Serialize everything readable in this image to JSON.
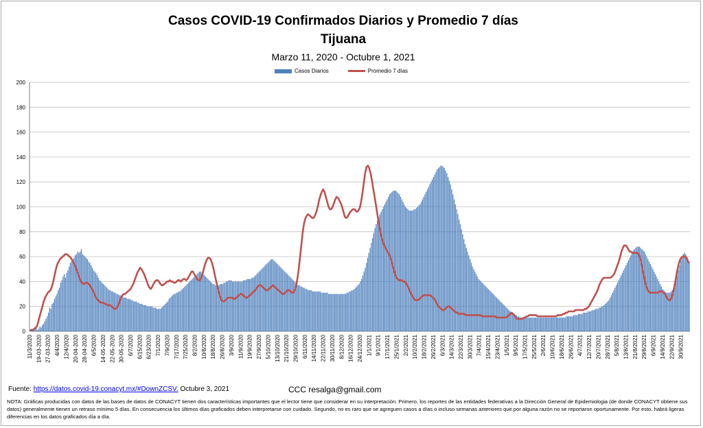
{
  "chart_data": {
    "type": "bar",
    "title": "Casos COVID-19  Confirmados Diarios y Promedio 7 días",
    "title2": "Tijuana",
    "subtitle": "Marzo 11, 2020 - Octubre  1, 2021",
    "ylim": [
      0,
      200
    ],
    "yticks": [
      0,
      20,
      40,
      60,
      80,
      100,
      120,
      140,
      160,
      180,
      200
    ],
    "grid": true,
    "legend_position": "top",
    "series": [
      {
        "name": "Casos Diarios",
        "color": "#4f81bd",
        "kind": "bar"
      },
      {
        "name": "Promedio 7 días",
        "color": "#c0504d",
        "kind": "line"
      }
    ],
    "x_tick_labels": [
      "11/3/2020",
      "19-03-2020",
      "27-03-2020",
      "4/4/2020",
      "12/4/2020",
      "20-04-2020",
      "28-04-2020",
      "6/5/2020",
      "14-05-2020",
      "22-05-2020",
      "30-05-2020",
      "6/7/2020",
      "6/15/2020",
      "6/23/2020",
      "7/1/2020",
      "7/9/2020",
      "7/17/2020",
      "7/25/2020",
      "8/2/2020",
      "10/8/2020",
      "18/8/2020",
      "26/8/2020",
      "3/9/2020",
      "11/9/2020",
      "19/9/2020",
      "27/9/2020",
      "5/10/2020",
      "13/10/2020",
      "21/10/2020",
      "29/10/2020",
      "6/11/2020",
      "14/11/2020",
      "22/11/2020",
      "30/11/2020",
      "8/12/2020",
      "16/12/2020",
      "24/12/2020",
      "1/1/2021",
      "9/1/2021",
      "17/1/2021",
      "25/1/2021",
      "2/2/2021",
      "10/2/2021",
      "18/2/2021",
      "26/2/2021",
      "6/3/2021",
      "14/3/2021",
      "22/3/2021",
      "30/3/2021",
      "7/4/2021",
      "15/4/2021",
      "23/4/2021",
      "1/5/2021",
      "9/5/2021",
      "17/5/2021",
      "25/5/2021",
      "2/6/2021",
      "10/6/2021",
      "18/6/2021",
      "26/6/2021",
      "4/7/2021",
      "12/7/2021",
      "20/7/2021",
      "28/7/2021",
      "5/8/2021",
      "13/8/2021",
      "21/8/2021",
      "29/8/2021",
      "6/9/2021",
      "14/9/2021",
      "22/9/2021",
      "30/9/2021"
    ],
    "average_7d": [
      1,
      1,
      1,
      2,
      3,
      4,
      8,
      12,
      16,
      20,
      24,
      27,
      29,
      31,
      32,
      33,
      36,
      40,
      45,
      50,
      54,
      56,
      58,
      59,
      60,
      61,
      62,
      62,
      61,
      60,
      59,
      57,
      55,
      53,
      50,
      47,
      44,
      41,
      39,
      38,
      38,
      39,
      39,
      38,
      37,
      35,
      33,
      31,
      28,
      26,
      25,
      24,
      23,
      23,
      23,
      22,
      22,
      21,
      21,
      21,
      20,
      19,
      18,
      18,
      19,
      21,
      24,
      27,
      29,
      30,
      30,
      31,
      32,
      33,
      34,
      36,
      38,
      41,
      44,
      47,
      49,
      51,
      50,
      48,
      46,
      43,
      40,
      37,
      35,
      34,
      36,
      38,
      40,
      41,
      41,
      40,
      38,
      37,
      37,
      38,
      39,
      40,
      40,
      41,
      40,
      40,
      39,
      39,
      40,
      41,
      41,
      40,
      41,
      42,
      42,
      41,
      42,
      44,
      46,
      48,
      48,
      46,
      44,
      42,
      41,
      41,
      43,
      46,
      50,
      54,
      57,
      59,
      59,
      58,
      55,
      51,
      46,
      41,
      36,
      32,
      28,
      25,
      24,
      24,
      25,
      26,
      27,
      27,
      27,
      27,
      26,
      26,
      27,
      28,
      29,
      30,
      30,
      29,
      28,
      27,
      27,
      28,
      29,
      30,
      31,
      32,
      33,
      35,
      36,
      37,
      37,
      36,
      35,
      34,
      33,
      33,
      34,
      35,
      36,
      37,
      36,
      35,
      34,
      33,
      32,
      31,
      30,
      30,
      31,
      32,
      33,
      33,
      32,
      31,
      31,
      33,
      36,
      42,
      50,
      60,
      70,
      80,
      87,
      91,
      93,
      94,
      93,
      92,
      91,
      91,
      93,
      96,
      100,
      105,
      109,
      112,
      114,
      112,
      108,
      104,
      100,
      98,
      98,
      100,
      103,
      106,
      108,
      107,
      105,
      103,
      100,
      96,
      92,
      91,
      92,
      94,
      96,
      97,
      98,
      98,
      97,
      96,
      97,
      99,
      104,
      111,
      119,
      127,
      132,
      133,
      131,
      127,
      121,
      114,
      108,
      101,
      94,
      87,
      81,
      76,
      72,
      69,
      67,
      65,
      63,
      61,
      58,
      54,
      50,
      46,
      43,
      42,
      41,
      41,
      41,
      40,
      40,
      39,
      37,
      35,
      32,
      30,
      28,
      26,
      25,
      25,
      25,
      26,
      27,
      28,
      29,
      29,
      29,
      29,
      29,
      29,
      28,
      27,
      26,
      24,
      22,
      20,
      19,
      18,
      17,
      17,
      18,
      19,
      20,
      20,
      19,
      18,
      17,
      16,
      15,
      15,
      14,
      14,
      14,
      14,
      14,
      13,
      13,
      13,
      13,
      13,
      13,
      13,
      13,
      13,
      13,
      13,
      13,
      12,
      12,
      12,
      12,
      12,
      12,
      12,
      12,
      12,
      12,
      12,
      11,
      11,
      11,
      11,
      11,
      11,
      11,
      11,
      12,
      13,
      14,
      15,
      14,
      13,
      11,
      10,
      10,
      10,
      10,
      10,
      11,
      11,
      12,
      12,
      13,
      13,
      13,
      13,
      13,
      13,
      12,
      12,
      12,
      12,
      12,
      12,
      12,
      12,
      12,
      12,
      12,
      12,
      12,
      12,
      12,
      13,
      13,
      13,
      13,
      14,
      14,
      15,
      15,
      16,
      16,
      16,
      16,
      16,
      17,
      17,
      17,
      17,
      17,
      17,
      17,
      18,
      18,
      19,
      20,
      22,
      24,
      26,
      28,
      30,
      32,
      35,
      38,
      40,
      42,
      43,
      43,
      43,
      43,
      43,
      43,
      44,
      45,
      47,
      50,
      53,
      56,
      60,
      64,
      67,
      69,
      69,
      68,
      66,
      64,
      64,
      63,
      63,
      63,
      63,
      63,
      61,
      58,
      53,
      47,
      42,
      37,
      34,
      32,
      31,
      31,
      31,
      31,
      31,
      31,
      31,
      32,
      32,
      32,
      31,
      30,
      28,
      26,
      25,
      25,
      27,
      31,
      36,
      42,
      48,
      53,
      57,
      59,
      60,
      60,
      60,
      59,
      56,
      55
    ],
    "daily_cases": [
      1,
      2,
      1,
      1,
      2,
      3,
      1,
      2,
      4,
      3,
      5,
      6,
      8,
      10,
      12,
      15,
      19,
      18,
      22,
      23,
      26,
      28,
      30,
      33,
      35,
      39,
      41,
      44,
      46,
      43,
      47,
      49,
      52,
      55,
      56,
      58,
      59,
      61,
      62,
      64,
      63,
      64,
      66,
      62,
      61,
      60,
      59,
      58,
      56,
      55,
      53,
      51,
      49,
      48,
      47,
      45,
      43,
      41,
      40,
      39,
      38,
      37,
      36,
      35,
      34,
      33,
      33,
      32,
      32,
      31,
      31,
      30,
      30,
      29,
      29,
      28,
      28,
      27,
      27,
      27,
      26,
      26,
      26,
      25,
      25,
      24,
      24,
      24,
      23,
      23,
      22,
      22,
      22,
      21,
      21,
      21,
      20,
      20,
      20,
      20,
      20,
      19,
      19,
      19,
      18,
      18,
      18,
      18,
      19,
      20,
      21,
      22,
      23,
      24,
      26,
      27,
      28,
      29,
      30,
      30,
      31,
      31,
      32,
      32,
      33,
      34,
      35,
      36,
      37,
      38,
      39,
      40,
      41,
      42,
      43,
      44,
      45,
      46,
      47,
      48,
      48,
      47,
      46,
      45,
      44,
      43,
      42,
      41,
      40,
      39,
      38,
      38,
      37,
      37,
      37,
      37,
      38,
      38,
      38,
      39,
      39,
      40,
      40,
      41,
      41,
      41,
      40,
      40,
      40,
      40,
      40,
      40,
      40,
      40,
      40,
      41,
      41,
      41,
      42,
      42,
      42,
      42,
      43,
      43,
      44,
      45,
      46,
      47,
      48,
      49,
      50,
      51,
      52,
      53,
      54,
      55,
      56,
      57,
      58,
      58,
      57,
      56,
      55,
      54,
      53,
      52,
      51,
      50,
      49,
      48,
      47,
      46,
      45,
      44,
      43,
      42,
      41,
      40,
      39,
      38,
      37,
      37,
      36,
      36,
      35,
      35,
      34,
      34,
      33,
      33,
      33,
      33,
      32,
      32,
      32,
      32,
      32,
      32,
      32,
      31,
      31,
      31,
      31,
      31,
      31,
      30,
      30,
      30,
      30,
      30,
      30,
      30,
      30,
      30,
      30,
      30,
      30,
      30,
      30,
      30,
      31,
      31,
      32,
      32,
      33,
      33,
      34,
      35,
      36,
      37,
      38,
      40,
      42,
      45,
      48,
      51,
      55,
      59,
      63,
      67,
      71,
      75,
      79,
      83,
      86,
      89,
      92,
      94,
      96,
      98,
      100,
      102,
      104,
      106,
      108,
      110,
      111,
      112,
      113,
      113,
      113,
      112,
      111,
      110,
      108,
      106,
      104,
      102,
      100,
      99,
      98,
      97,
      97,
      97,
      97,
      98,
      98,
      99,
      100,
      101,
      102,
      104,
      106,
      108,
      110,
      112,
      114,
      116,
      118,
      120,
      122,
      124,
      126,
      128,
      130,
      131,
      132,
      133,
      133,
      132,
      131,
      129,
      127,
      124,
      121,
      118,
      114,
      110,
      106,
      102,
      98,
      94,
      90,
      86,
      82,
      78,
      74,
      70,
      67,
      64,
      61,
      58,
      55,
      52,
      50,
      48,
      46,
      44,
      42,
      41,
      40,
      39,
      38,
      37,
      36,
      35,
      34,
      33,
      32,
      31,
      30,
      29,
      28,
      27,
      26,
      25,
      24,
      23,
      22,
      21,
      20,
      19,
      18,
      17,
      16,
      15,
      14,
      14,
      13,
      13,
      12,
      12,
      11,
      11,
      11,
      11,
      11,
      11,
      11,
      11,
      11,
      11,
      11,
      11,
      11,
      11,
      11,
      11,
      11,
      11,
      11,
      11,
      11,
      11,
      11,
      11,
      11,
      11,
      11,
      11,
      11,
      11,
      11,
      11,
      11,
      11,
      11,
      11,
      11,
      11,
      12,
      12,
      12,
      12,
      12,
      12,
      13,
      13,
      13,
      13,
      14,
      14,
      14,
      14,
      15,
      15,
      15,
      15,
      16,
      16,
      16,
      17,
      17,
      17,
      18,
      18,
      18,
      19,
      19,
      20,
      20,
      21,
      22,
      23,
      24,
      25,
      27,
      29,
      31,
      33,
      35,
      37,
      39,
      41,
      43,
      45,
      47,
      49,
      51,
      53,
      55,
      57,
      59,
      61,
      63,
      65,
      66,
      67,
      68,
      68,
      68,
      67,
      66,
      65,
      64,
      62,
      60,
      58,
      56,
      54,
      52,
      50,
      48,
      46,
      44,
      42,
      40,
      38,
      36,
      34,
      33,
      32,
      31,
      31,
      31,
      31,
      32,
      33,
      35,
      38,
      41,
      45,
      49,
      53,
      57,
      60,
      62,
      63,
      62,
      60,
      58,
      56
    ]
  },
  "legend": {
    "bars_label": "Casos Diarios",
    "line_label": "Promedio 7 días"
  },
  "footer": {
    "source_label": "Fuente:",
    "source_link": "https://datos.covid-19.conacyt.mx/#DownZCSV.",
    "source_date": "Octubre 3, 2021",
    "credits": "CCC      resalga@gmail.com",
    "note": "NOTA: Gráficas producidas con datos de las bases de datos de CONACYT tienen dos características importantes que el lector tiene que considerar en su interpretación. Primero, los reportes de las entidades federativas a la Dirección General de Epidemiologia (de donde CONACYT obtiene sus datos) generalmente tienen un retraso mínimo 5 días. En consecuencia los últimos días graficados deben interpretarse con cuidado. Segundo, no es raro que se agreguen casos a días o incluso semanas anteriores que por alguna razón no se reportaron oportunamente. Por esto, habrá ligeras diferencias en los datos graficados día a día."
  }
}
